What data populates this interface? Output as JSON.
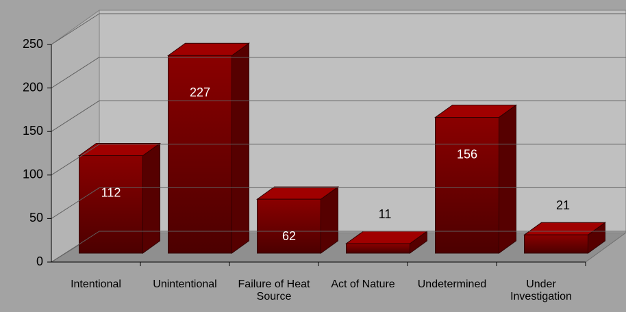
{
  "chart_data": {
    "type": "bar3d",
    "categories": [
      "Intentional",
      "Unintentional",
      "Failure of Heat Source",
      "Act of Nature",
      "Undetermined",
      "Under Investigation"
    ],
    "values": [
      112,
      227,
      62,
      11,
      156,
      21
    ],
    "color": "#8a0000",
    "ylim": [
      0,
      250
    ],
    "yticks": [
      0,
      50,
      100,
      150,
      200,
      250
    ],
    "grid": true
  }
}
